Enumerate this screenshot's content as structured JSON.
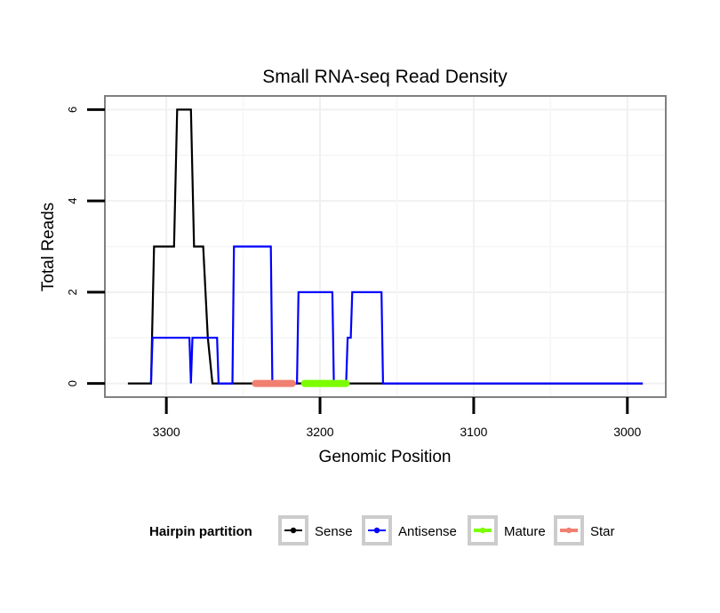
{
  "chart_data": {
    "type": "line",
    "title": "Small RNA-seq Read Density",
    "xlabel": "Genomic Position",
    "ylabel": "Total Reads",
    "xlim": [
      3340,
      2975
    ],
    "x_reversed": true,
    "ylim": [
      -0.3,
      6.3
    ],
    "x_ticks": [
      3300,
      3200,
      3100,
      3000
    ],
    "y_ticks": [
      0,
      2,
      4,
      6
    ],
    "grid": true,
    "legend": {
      "title": "Hairpin partition",
      "position": "bottom",
      "entries": [
        {
          "name": "Sense",
          "color": "#000000"
        },
        {
          "name": "Antisense",
          "color": "#0000ff"
        },
        {
          "name": "Mature",
          "color": "#7cfc00"
        },
        {
          "name": "Star",
          "color": "#f08070"
        }
      ]
    },
    "series": [
      {
        "name": "Sense",
        "color": "#000000",
        "points": [
          [
            3325,
            0
          ],
          [
            3310,
            0
          ],
          [
            3308,
            3
          ],
          [
            3295,
            3
          ],
          [
            3293,
            6
          ],
          [
            3284,
            6
          ],
          [
            3282,
            3
          ],
          [
            3276,
            3
          ],
          [
            3273,
            1
          ],
          [
            3270,
            0
          ],
          [
            2990,
            0
          ]
        ]
      },
      {
        "name": "Antisense",
        "color": "#0000ff",
        "points": [
          [
            3310,
            0
          ],
          [
            3309,
            1
          ],
          [
            3285,
            1
          ],
          [
            3284,
            0
          ],
          [
            3283,
            1
          ],
          [
            3267,
            1
          ],
          [
            3266,
            0
          ],
          [
            3257,
            0
          ],
          [
            3256,
            3
          ],
          [
            3232,
            3
          ],
          [
            3231,
            0
          ],
          [
            3215,
            0
          ],
          [
            3214,
            2
          ],
          [
            3192,
            2
          ],
          [
            3191,
            0
          ],
          [
            3183,
            0
          ],
          [
            3182,
            1
          ],
          [
            3180,
            1
          ],
          [
            3179,
            2
          ],
          [
            3160,
            2
          ],
          [
            3159,
            0
          ],
          [
            2990,
            0
          ]
        ]
      },
      {
        "name": "Mature",
        "color": "#7cfc00",
        "points": [
          [
            3210,
            0
          ],
          [
            3183,
            0
          ]
        ]
      },
      {
        "name": "Star",
        "color": "#f08070",
        "points": [
          [
            3242,
            0
          ],
          [
            3218,
            0
          ]
        ]
      }
    ]
  }
}
